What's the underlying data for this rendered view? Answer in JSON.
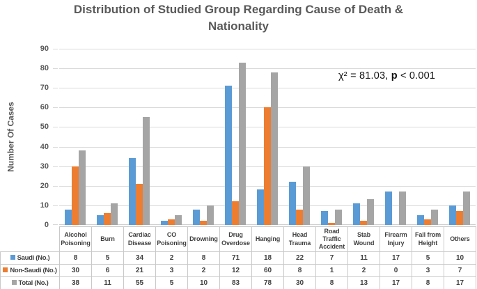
{
  "title": "Distribution of Studied Group Regarding Cause of Death & Nationality",
  "annotation": {
    "chi": "χ² = 81.03, ",
    "p": "p",
    "rest": " < 0.001"
  },
  "colors": {
    "saudi": "#5B9BD5",
    "non_saudi": "#ED7D31",
    "total": "#A5A5A5",
    "gridline": "#D9D9D9",
    "title_text": "#595959"
  },
  "chart_data": {
    "type": "bar",
    "title": "Distribution of Studied Group Regarding Cause of Death & Nationality",
    "xlabel": "",
    "ylabel": "Number Of Cases",
    "ylim": [
      0,
      90
    ],
    "yticks": [
      0,
      10,
      20,
      30,
      40,
      50,
      60,
      70,
      80,
      90
    ],
    "grid": true,
    "legend_position": "table-row-labels-left",
    "annotation": "χ² = 81.03, p < 0.001",
    "categories": [
      "Alcohol Poisoning",
      "Burn",
      "Cardiac Disease",
      "CO Poisoning",
      "Drowning",
      "Drug Overdose",
      "Hanging",
      "Head Trauma",
      "Road Traffic Accident",
      "Stab Wound",
      "Firearm Injury",
      "Fall from Height",
      "Others"
    ],
    "series": [
      {
        "name": "Saudi (No.)",
        "color": "#5B9BD5",
        "values": [
          8,
          5,
          34,
          2,
          8,
          71,
          18,
          22,
          7,
          11,
          17,
          5,
          10
        ]
      },
      {
        "name": "Non-Saudi (No.)",
        "color": "#ED7D31",
        "values": [
          30,
          6,
          21,
          3,
          2,
          12,
          60,
          8,
          1,
          2,
          0,
          3,
          7
        ]
      },
      {
        "name": "Total (No.)",
        "color": "#A5A5A5",
        "values": [
          38,
          11,
          55,
          5,
          10,
          83,
          78,
          30,
          8,
          13,
          17,
          8,
          17
        ]
      }
    ]
  }
}
